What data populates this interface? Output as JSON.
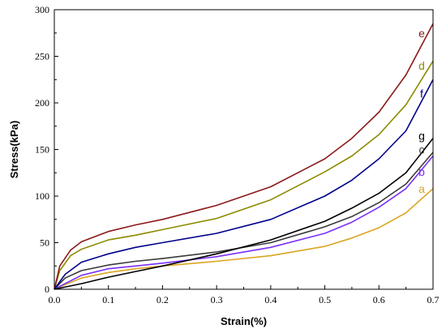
{
  "chart_data": {
    "type": "line",
    "title": "",
    "xlabel": "Strain(%)",
    "ylabel": "Stress(kPa)",
    "xlim": [
      0.0,
      0.7
    ],
    "ylim": [
      0,
      300
    ],
    "xticks": [
      0.0,
      0.1,
      0.2,
      0.3,
      0.4,
      0.5,
      0.6,
      0.7
    ],
    "xtick_labels": [
      "0.0",
      "0.1",
      "0.2",
      "0.3",
      "0.4",
      "0.5",
      "0.6",
      "0.7"
    ],
    "yticks": [
      0,
      50,
      100,
      150,
      200,
      250,
      300
    ],
    "ytick_labels": [
      "0",
      "50",
      "100",
      "150",
      "200",
      "250",
      "300"
    ],
    "grid": false,
    "legend": "inline labels at curve ends",
    "series": [
      {
        "label": "a",
        "color": "#DAA520",
        "x": [
          0.0,
          0.02,
          0.05,
          0.1,
          0.15,
          0.2,
          0.3,
          0.4,
          0.5,
          0.55,
          0.6,
          0.65,
          0.7
        ],
        "y": [
          0,
          5,
          12,
          18,
          22,
          25,
          30,
          36,
          46,
          55,
          66,
          82,
          108
        ]
      },
      {
        "label": "b",
        "color": "#7B2FF7",
        "x": [
          0.0,
          0.02,
          0.05,
          0.1,
          0.15,
          0.2,
          0.3,
          0.4,
          0.5,
          0.55,
          0.6,
          0.65,
          0.7
        ],
        "y": [
          0,
          6,
          15,
          22,
          25,
          28,
          35,
          45,
          60,
          72,
          88,
          108,
          143
        ]
      },
      {
        "label": "c",
        "color": "#3A3A3A",
        "x": [
          0.0,
          0.02,
          0.05,
          0.1,
          0.15,
          0.2,
          0.3,
          0.4,
          0.5,
          0.55,
          0.6,
          0.65,
          0.7
        ],
        "y": [
          0,
          12,
          20,
          26,
          30,
          33,
          40,
          50,
          67,
          78,
          93,
          113,
          147
        ]
      },
      {
        "label": "d",
        "color": "#8B8B00",
        "x": [
          0.0,
          0.01,
          0.03,
          0.05,
          0.1,
          0.15,
          0.2,
          0.3,
          0.4,
          0.5,
          0.55,
          0.6,
          0.65,
          0.7
        ],
        "y": [
          0,
          20,
          36,
          43,
          53,
          58,
          64,
          76,
          96,
          126,
          143,
          166,
          198,
          245
        ]
      },
      {
        "label": "e",
        "color": "#8B1A1A",
        "x": [
          0.0,
          0.01,
          0.03,
          0.05,
          0.1,
          0.15,
          0.2,
          0.3,
          0.4,
          0.5,
          0.55,
          0.6,
          0.65,
          0.7
        ],
        "y": [
          0,
          25,
          42,
          51,
          62,
          69,
          75,
          90,
          110,
          140,
          162,
          190,
          230,
          285
        ]
      },
      {
        "label": "f",
        "color": "#00008B",
        "x": [
          0.0,
          0.02,
          0.05,
          0.1,
          0.15,
          0.2,
          0.3,
          0.4,
          0.5,
          0.55,
          0.6,
          0.65,
          0.7
        ],
        "y": [
          0,
          16,
          29,
          38,
          45,
          50,
          60,
          75,
          100,
          117,
          140,
          170,
          225
        ]
      },
      {
        "label": "g",
        "color": "#000000",
        "x": [
          0.0,
          0.05,
          0.1,
          0.15,
          0.2,
          0.3,
          0.4,
          0.5,
          0.55,
          0.6,
          0.65,
          0.7
        ],
        "y": [
          0,
          6,
          13,
          19,
          25,
          38,
          53,
          73,
          87,
          103,
          125,
          162
        ]
      }
    ]
  }
}
